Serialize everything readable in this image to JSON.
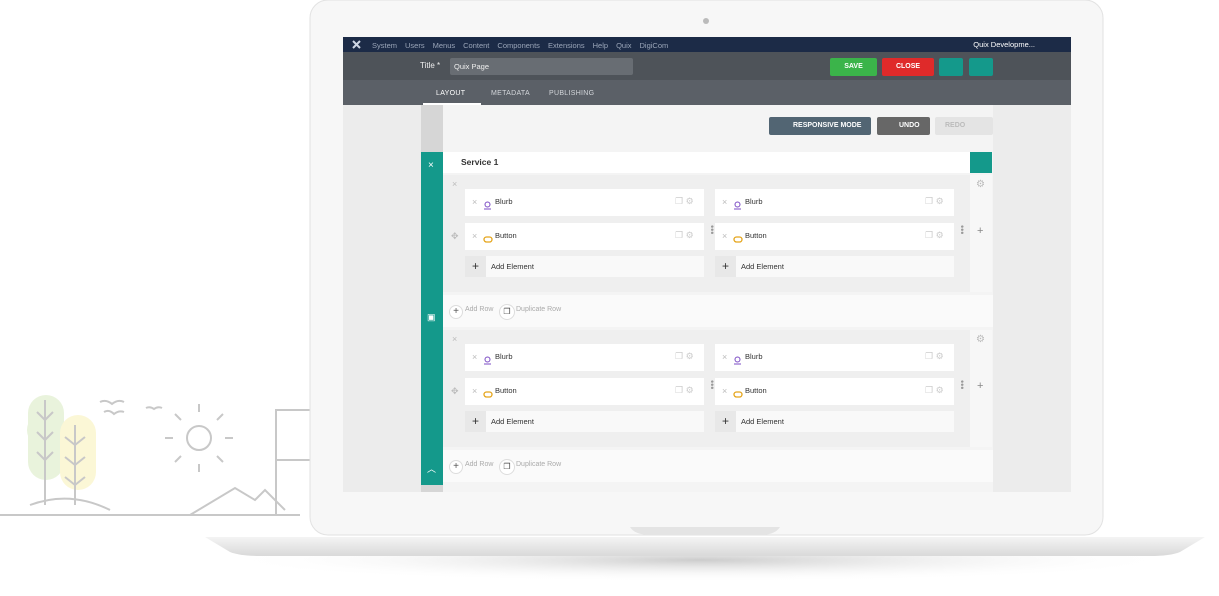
{
  "menu": {
    "items": [
      "System",
      "Users",
      "Menus",
      "Content",
      "Components",
      "Extensions",
      "Help",
      "Quix",
      "DigiCom"
    ],
    "user": "Quix Developme..."
  },
  "toolbar": {
    "title_label": "Title *",
    "title_value": "Quix Page",
    "save": "SAVE",
    "close": "CLOSE"
  },
  "tabs": [
    "LAYOUT",
    "METADATA",
    "PUBLISHING"
  ],
  "actions": {
    "responsive": "RESPONSIVE MODE",
    "undo": "UNDO",
    "redo": "REDO"
  },
  "section": {
    "title": "Service 1",
    "rows": [
      {
        "columns": [
          {
            "elements": [
              "Blurb",
              "Button"
            ],
            "add": "Add Element"
          },
          {
            "elements": [
              "Blurb",
              "Button"
            ],
            "add": "Add Element"
          }
        ],
        "add_row": "Add Row",
        "duplicate_row": "Duplicate Row"
      },
      {
        "columns": [
          {
            "elements": [
              "Blurb",
              "Button"
            ],
            "add": "Add Element"
          },
          {
            "elements": [
              "Blurb",
              "Button"
            ],
            "add": "Add Element"
          }
        ],
        "add_row": "Add Row",
        "duplicate_row": "Duplicate Row"
      }
    ]
  }
}
